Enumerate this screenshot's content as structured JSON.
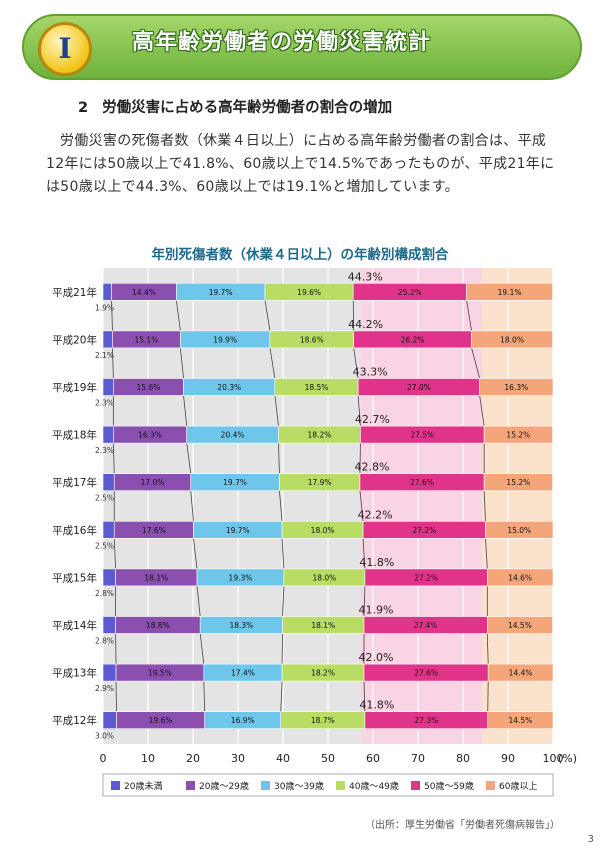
{
  "header": {
    "badge": "I",
    "title": "高年齢労働者の労働災害統計"
  },
  "section": {
    "number": "2",
    "title": "労働災害に占める高年齢労働者の割合の増加"
  },
  "paragraph": "労働災害の死傷者数（休業４日以上）に占める高年齢労働者の割合は、平成12年には50歳以上で41.8%、60歳以上で14.5%であったものが、平成21年には50歳以上で44.3%、60歳以上では19.1%と増加しています。",
  "footer": {
    "source": "（出所：厚生労働省「労働者死傷病報告」）",
    "page_number": "3"
  },
  "chart_data": {
    "type": "bar",
    "orientation": "horizontal-stacked-100",
    "title": "年別死傷者数（休業４日以上）の年齢別構成割合",
    "x_unit_label": "(%)",
    "xlim": [
      0,
      100
    ],
    "x_ticks": [
      "0",
      "10",
      "20",
      "30",
      "40",
      "50",
      "60",
      "70",
      "80",
      "90",
      "100"
    ],
    "grid": true,
    "legend_position": "bottom",
    "categories": [
      "平成21年",
      "平成20年",
      "平成19年",
      "平成18年",
      "平成17年",
      "平成16年",
      "平成15年",
      "平成14年",
      "平成13年",
      "平成12年"
    ],
    "series": [
      {
        "name": "20歳未満",
        "color": "#5c5ad0",
        "values": [
          1.9,
          2.1,
          2.3,
          2.3,
          2.5,
          2.5,
          2.8,
          2.8,
          2.9,
          3.0
        ],
        "labels": [
          "1.9%",
          "2.1%",
          "2.3%",
          "2.3%",
          "2.5%",
          "2.5%",
          "2.8%",
          "2.8%",
          "2.9%",
          "3.0%"
        ]
      },
      {
        "name": "20歳～29歳",
        "color": "#8b4fb0",
        "values": [
          14.4,
          15.1,
          15.6,
          16.3,
          17.0,
          17.6,
          18.1,
          18.8,
          19.5,
          19.6
        ],
        "labels": [
          "14.4%",
          "15.1%",
          "15.6%",
          "16.3%",
          "17.0%",
          "17.6%",
          "18.1%",
          "18.8%",
          "19.5%",
          "19.6%"
        ]
      },
      {
        "name": "30歳～39歳",
        "color": "#6ec6ea",
        "values": [
          19.7,
          19.9,
          20.3,
          20.4,
          19.7,
          19.7,
          19.3,
          18.3,
          17.4,
          16.9
        ],
        "labels": [
          "19.7%",
          "19.9%",
          "20.3%",
          "20.4%",
          "19.7%",
          "19.7%",
          "19.3%",
          "18.3%",
          "17.4%",
          "16.9%"
        ]
      },
      {
        "name": "40歳～49歳",
        "color": "#b8dc64",
        "values": [
          19.6,
          18.6,
          18.5,
          18.2,
          17.9,
          18.0,
          18.0,
          18.1,
          18.2,
          18.7
        ],
        "labels": [
          "19.6%",
          "18.6%",
          "18.5%",
          "18.2%",
          "17.9%",
          "18.0%",
          "18.0%",
          "18.1%",
          "18.2%",
          "18.7%"
        ]
      },
      {
        "name": "50歳～59歳",
        "color": "#e0338a",
        "values": [
          25.2,
          26.2,
          27.0,
          27.5,
          27.6,
          27.2,
          27.2,
          27.4,
          27.6,
          27.3
        ],
        "labels": [
          "25.2%",
          "26.2%",
          "27.0%",
          "27.5%",
          "27.6%",
          "27.2%",
          "27.2%",
          "27.4%",
          "27.6%",
          "27.3%"
        ]
      },
      {
        "name": "60歳以上",
        "color": "#f4a67a",
        "values": [
          19.1,
          18.0,
          16.3,
          15.2,
          15.2,
          15.0,
          14.6,
          14.5,
          14.4,
          14.5
        ],
        "labels": [
          "19.1%",
          "18.0%",
          "16.3%",
          "15.2%",
          "15.2%",
          "15.0%",
          "14.6%",
          "14.5%",
          "14.4%",
          "14.5%"
        ]
      }
    ],
    "over50_totals": [
      "44.3%",
      "44.2%",
      "43.3%",
      "42.7%",
      "42.8%",
      "42.2%",
      "41.8%",
      "41.9%",
      "42.0%",
      "41.8%"
    ],
    "colors": {
      "plot_bg": "#e4e4e4",
      "band_50_59": "#f9d4e4",
      "band_60": "#fbe2cc",
      "grid": "#ffffff",
      "axis_text": "#222222"
    }
  }
}
